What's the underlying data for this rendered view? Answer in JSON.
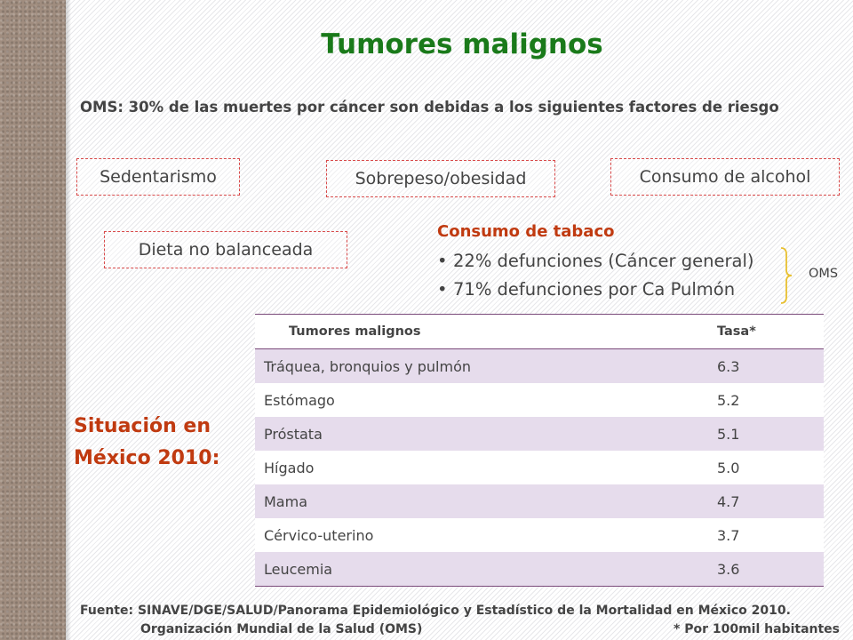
{
  "title": "Tumores malignos",
  "subtitle": "OMS: 30% de las muertes por cáncer son debidas a los siguientes factores de riesgo",
  "risk_factors": {
    "sedentarismo": "Sedentarismo",
    "sobrepeso": "Sobrepeso/obesidad",
    "alcohol": "Consumo de alcohol",
    "dieta": "Dieta no balanceada"
  },
  "tabaco": {
    "title": "Consumo de tabaco",
    "items": [
      "22% defunciones (Cáncer general)",
      "71% defunciones por Ca Pulmón"
    ],
    "source_label": "OMS"
  },
  "situacion_label": "Situación en México 2010:",
  "table": {
    "headers": [
      "Tumores malignos",
      "Tasa*"
    ],
    "rows": [
      [
        "Tráquea, bronquios y pulmón",
        "6.3"
      ],
      [
        "Estómago",
        "5.2"
      ],
      [
        "Próstata",
        "5.1"
      ],
      [
        "Hígado",
        "5.0"
      ],
      [
        "Mama",
        "4.7"
      ],
      [
        "Cérvico-uterino",
        "3.7"
      ],
      [
        "Leucemia",
        "3.6"
      ]
    ]
  },
  "footer": {
    "line1": "Fuente: SINAVE/DGE/SALUD/Panorama Epidemiológico y Estadístico de la Mortalidad en México 2010.",
    "line2_left": "Organización Mundial de la Salud (OMS)",
    "line2_right": "* Por 100mil habitantes"
  },
  "colors": {
    "title": "#1a7a1a",
    "accent": "#c03a10",
    "dashed_border": "#d84a4a",
    "table_alt_row": "#e6dcec"
  }
}
